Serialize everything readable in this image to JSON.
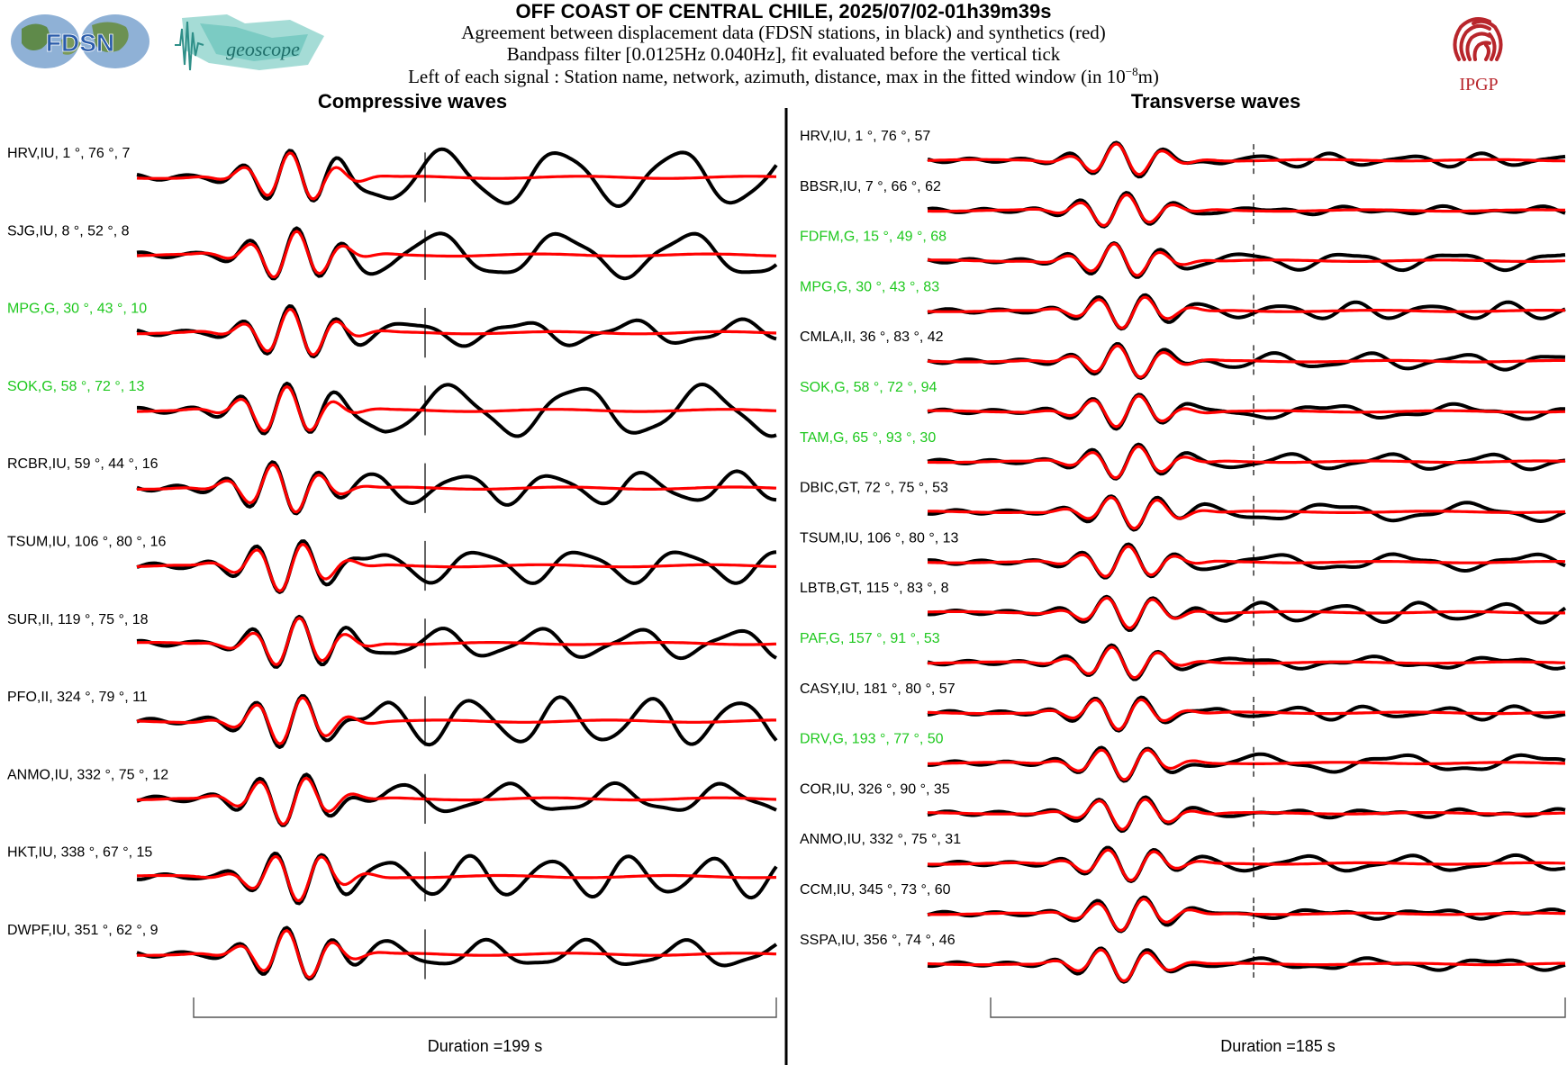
{
  "header": {
    "title": "OFF COAST OF CENTRAL CHILE, 2025/07/02-01h39m39s",
    "line1": "Agreement between displacement data (FDSN stations, in black) and synthetics (red)",
    "line2": "Bandpass filter [0.0125Hz 0.040Hz], fit evaluated before the vertical tick",
    "line3_prefix": "Left of each signal : Station name, network, azimuth, distance, max in the fitted window (in 10",
    "line3_exp": "−8",
    "line3_suffix": "m)"
  },
  "logos": {
    "fdsn_text": "FDSN",
    "geoscope_text": "geoscope",
    "ipgp_text": "IPGP"
  },
  "colors": {
    "data": "#000000",
    "synthetic": "#ff0000",
    "label_default": "#000000",
    "label_highlight": "#1ec81e",
    "fdsn_blue": "#2a5caa",
    "geoscope_teal": "#6cc7bf",
    "ipgp_red": "#b8262c"
  },
  "chart_data": [
    {
      "type": "line",
      "title": "Compressive waves",
      "duration_label": "Duration =199 s",
      "series_names": [
        "data",
        "synthetics"
      ],
      "traces": [
        {
          "station": "HRV",
          "network": "IU",
          "azimuth": 1,
          "distance": 76,
          "max": 7,
          "highlight": false
        },
        {
          "station": "SJG",
          "network": "IU",
          "azimuth": 8,
          "distance": 52,
          "max": 8,
          "highlight": false
        },
        {
          "station": "MPG",
          "network": "G",
          "azimuth": 30,
          "distance": 43,
          "max": 10,
          "highlight": true
        },
        {
          "station": "SOK",
          "network": "G",
          "azimuth": 58,
          "distance": 72,
          "max": 13,
          "highlight": true
        },
        {
          "station": "RCBR",
          "network": "IU",
          "azimuth": 59,
          "distance": 44,
          "max": 16,
          "highlight": false
        },
        {
          "station": "TSUM",
          "network": "IU",
          "azimuth": 106,
          "distance": 80,
          "max": 16,
          "highlight": false
        },
        {
          "station": "SUR",
          "network": "II",
          "azimuth": 119,
          "distance": 75,
          "max": 18,
          "highlight": false
        },
        {
          "station": "PFO",
          "network": "II",
          "azimuth": 324,
          "distance": 79,
          "max": 11,
          "highlight": false
        },
        {
          "station": "ANMO",
          "network": "IU",
          "azimuth": 332,
          "distance": 75,
          "max": 12,
          "highlight": false
        },
        {
          "station": "HKT",
          "network": "IU",
          "azimuth": 338,
          "distance": 67,
          "max": 15,
          "highlight": false
        },
        {
          "station": "DWPF",
          "network": "IU",
          "azimuth": 351,
          "distance": 62,
          "max": 9,
          "highlight": false
        }
      ]
    },
    {
      "type": "line",
      "title": "Transverse waves",
      "duration_label": "Duration =185 s",
      "series_names": [
        "data",
        "synthetics"
      ],
      "traces": [
        {
          "station": "HRV",
          "network": "IU",
          "azimuth": 1,
          "distance": 76,
          "max": 57,
          "highlight": false
        },
        {
          "station": "BBSR",
          "network": "IU",
          "azimuth": 7,
          "distance": 66,
          "max": 62,
          "highlight": false
        },
        {
          "station": "FDFM",
          "network": "G",
          "azimuth": 15,
          "distance": 49,
          "max": 68,
          "highlight": true
        },
        {
          "station": "MPG",
          "network": "G",
          "azimuth": 30,
          "distance": 43,
          "max": 83,
          "highlight": true
        },
        {
          "station": "CMLA",
          "network": "II",
          "azimuth": 36,
          "distance": 83,
          "max": 42,
          "highlight": false
        },
        {
          "station": "SOK",
          "network": "G",
          "azimuth": 58,
          "distance": 72,
          "max": 94,
          "highlight": true
        },
        {
          "station": "TAM",
          "network": "G",
          "azimuth": 65,
          "distance": 93,
          "max": 30,
          "highlight": true
        },
        {
          "station": "DBIC",
          "network": "GT",
          "azimuth": 72,
          "distance": 75,
          "max": 53,
          "highlight": false
        },
        {
          "station": "TSUM",
          "network": "IU",
          "azimuth": 106,
          "distance": 80,
          "max": 13,
          "highlight": false
        },
        {
          "station": "LBTB",
          "network": "GT",
          "azimuth": 115,
          "distance": 83,
          "max": 8,
          "highlight": false
        },
        {
          "station": "PAF",
          "network": "G",
          "azimuth": 157,
          "distance": 91,
          "max": 53,
          "highlight": true
        },
        {
          "station": "CASY",
          "network": "IU",
          "azimuth": 181,
          "distance": 80,
          "max": 57,
          "highlight": false
        },
        {
          "station": "DRV",
          "network": "G",
          "azimuth": 193,
          "distance": 77,
          "max": 50,
          "highlight": true
        },
        {
          "station": "COR",
          "network": "IU",
          "azimuth": 326,
          "distance": 90,
          "max": 35,
          "highlight": false
        },
        {
          "station": "ANMO",
          "network": "IU",
          "azimuth": 332,
          "distance": 75,
          "max": 31,
          "highlight": false
        },
        {
          "station": "CCM",
          "network": "IU",
          "azimuth": 345,
          "distance": 73,
          "max": 60,
          "highlight": false
        },
        {
          "station": "SSPA",
          "network": "IU",
          "azimuth": 356,
          "distance": 74,
          "max": 46,
          "highlight": false
        }
      ]
    }
  ]
}
